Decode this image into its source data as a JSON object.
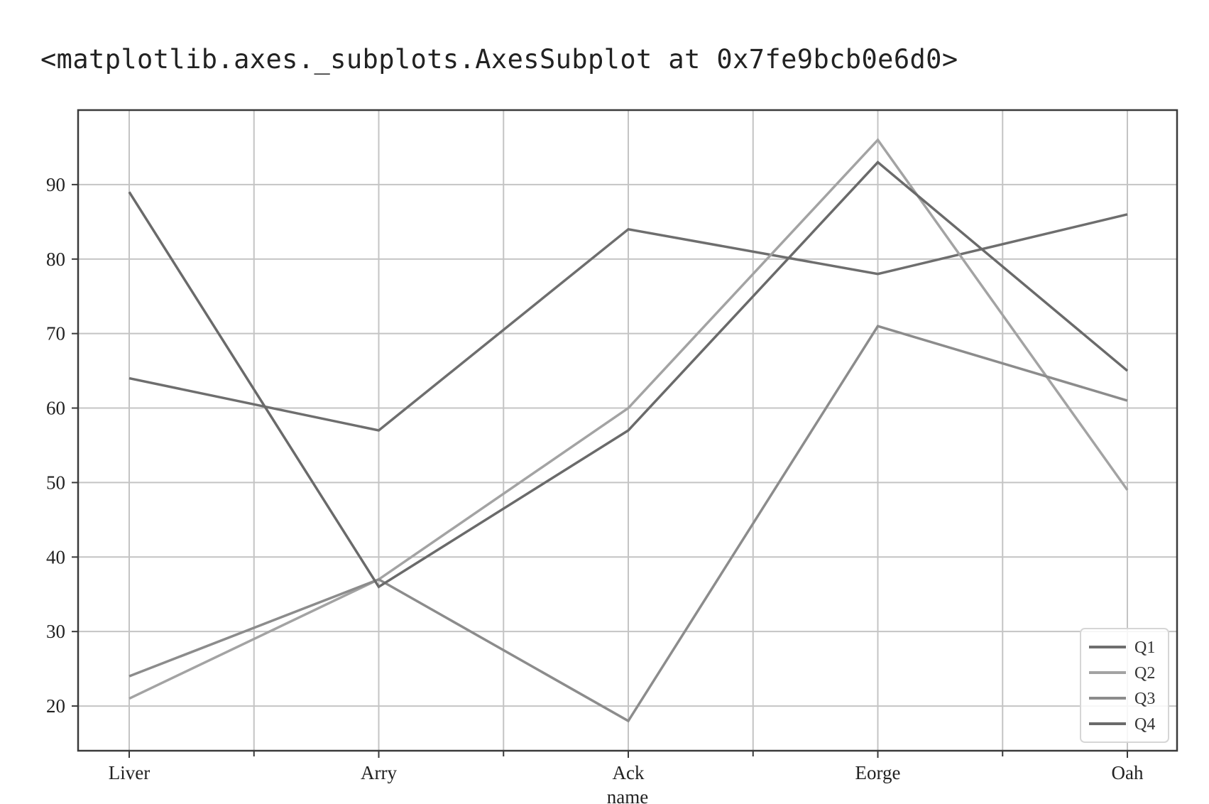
{
  "output_repr": "<matplotlib.axes._subplots.AxesSubplot at 0x7fe9bcb0e6d0>",
  "chart_data": {
    "type": "line",
    "categories": [
      "Liver",
      "Arry",
      "Ack",
      "Eorge",
      "Oah"
    ],
    "xlabel": "name",
    "ylabel": "",
    "ylim": [
      14,
      100
    ],
    "yticks": [
      20,
      30,
      40,
      50,
      60,
      70,
      80,
      90
    ],
    "grid": true,
    "legend_position": "lower-right",
    "series": [
      {
        "name": "Q1",
        "values": [
          64,
          57,
          84,
          78,
          86
        ],
        "color": "#6e6e6e"
      },
      {
        "name": "Q2",
        "values": [
          21,
          37,
          60,
          96,
          49
        ],
        "color": "#a3a3a3"
      },
      {
        "name": "Q3",
        "values": [
          24,
          37,
          18,
          71,
          61
        ],
        "color": "#8c8c8c"
      },
      {
        "name": "Q4",
        "values": [
          89,
          36,
          57,
          93,
          65
        ],
        "color": "#6a6a6a"
      }
    ]
  }
}
